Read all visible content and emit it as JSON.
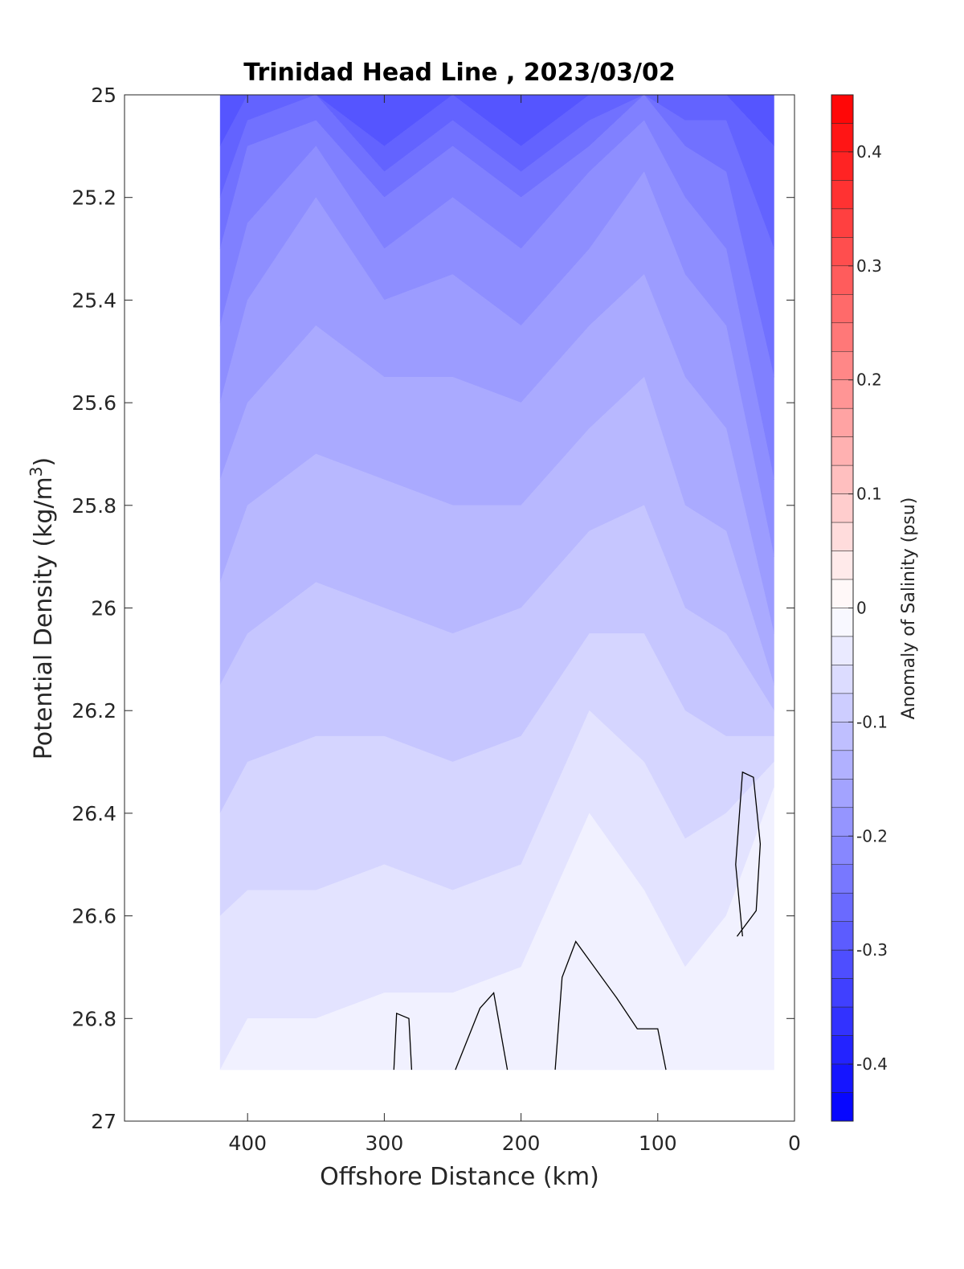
{
  "chart_data": {
    "type": "contour",
    "title": "Trinidad Head Line , 2023/03/02",
    "xlabel": "Offshore Distance (km)",
    "ylabel": {
      "main": "Potential Density (kg/m",
      "sup": "3",
      "close": ")"
    },
    "colorbar_label": "Anomaly of Salinity (psu)",
    "x_axis": {
      "range": [
        490,
        0
      ],
      "reversed": true,
      "ticks": [
        400,
        300,
        200,
        100,
        0
      ]
    },
    "y_axis": {
      "range": [
        25,
        27
      ],
      "reversed": true,
      "ticks": [
        "25",
        "25.2",
        "25.4",
        "25.6",
        "25.8",
        "26",
        "26.2",
        "26.4",
        "26.6",
        "26.8",
        "27"
      ]
    },
    "colorbar": {
      "range": [
        -0.45,
        0.45
      ],
      "levels": 36,
      "ticks": [
        "0.4",
        "0.3",
        "0.2",
        "0.1",
        "0",
        "-0.1",
        "-0.2",
        "-0.3",
        "-0.4"
      ],
      "colormap": {
        "negative_end": "#0000ff",
        "zero": "#ffffff",
        "positive_end": "#ff0000"
      }
    },
    "grid": false,
    "data_extent": {
      "x_offshore_max": 420,
      "x_onshore_min": 12,
      "density_max": 26.9
    },
    "zero_contour_color": "#000000",
    "band_anomaly_levels": [
      -0.3,
      -0.275,
      -0.25,
      -0.225,
      -0.2,
      -0.175,
      -0.15,
      -0.125,
      -0.1,
      -0.075,
      -0.05,
      -0.025
    ],
    "band_boundaries_density": [
      {
        "x": [
          420,
          400,
          350,
          300,
          250,
          200,
          150,
          110,
          80,
          50,
          15
        ],
        "d": [
          [
            25,
            25,
            25,
            25,
            25,
            25,
            25,
            25,
            25,
            25,
            25
          ],
          [
            25.1,
            25,
            25,
            25.1,
            25,
            25.1,
            25,
            25,
            25,
            25,
            25.1
          ],
          [
            25.2,
            25.05,
            25,
            25.15,
            25.05,
            25.15,
            25.05,
            25,
            25.05,
            25.05,
            25.3
          ],
          [
            25.3,
            25.1,
            25.05,
            25.2,
            25.1,
            25.2,
            25.1,
            25,
            25.1,
            25.15,
            25.55
          ],
          [
            25.45,
            25.25,
            25.1,
            25.3,
            25.2,
            25.3,
            25.15,
            25.05,
            25.2,
            25.3,
            25.75
          ],
          [
            25.6,
            25.4,
            25.2,
            25.4,
            25.35,
            25.45,
            25.3,
            25.15,
            25.35,
            25.45,
            25.9
          ],
          [
            25.75,
            25.6,
            25.45,
            25.55,
            25.55,
            25.6,
            25.45,
            25.35,
            25.55,
            25.65,
            26.05
          ],
          [
            25.95,
            25.8,
            25.7,
            25.75,
            25.8,
            25.8,
            25.65,
            25.55,
            25.8,
            25.85,
            26.15
          ],
          [
            26.15,
            26.05,
            25.95,
            26,
            26.05,
            26,
            25.85,
            25.8,
            26,
            26.05,
            26.2
          ],
          [
            26.4,
            26.3,
            26.25,
            26.25,
            26.3,
            26.25,
            26.05,
            26.05,
            26.2,
            26.25,
            26.25
          ],
          [
            26.6,
            26.55,
            26.55,
            26.5,
            26.55,
            26.5,
            26.2,
            26.3,
            26.45,
            26.4,
            26.3
          ],
          [
            26.9,
            26.8,
            26.8,
            26.75,
            26.75,
            26.7,
            26.4,
            26.55,
            26.7,
            26.6,
            26.35
          ]
        ]
      }
    ],
    "zero_contours": [
      {
        "x": [
          293,
          291,
          282,
          280
        ],
        "d": [
          26.9,
          26.79,
          26.8,
          26.9
        ]
      },
      {
        "x": [
          248,
          230,
          220,
          210
        ],
        "d": [
          26.9,
          26.78,
          26.75,
          26.9
        ]
      },
      {
        "x": [
          175,
          170,
          160,
          130,
          115,
          100,
          94
        ],
        "d": [
          26.9,
          26.72,
          26.65,
          26.76,
          26.82,
          26.82,
          26.9
        ]
      },
      {
        "x": [
          42,
          28,
          25,
          30,
          38,
          43,
          38
        ],
        "d": [
          26.64,
          26.59,
          26.46,
          26.33,
          26.32,
          26.5,
          26.64
        ]
      }
    ]
  }
}
